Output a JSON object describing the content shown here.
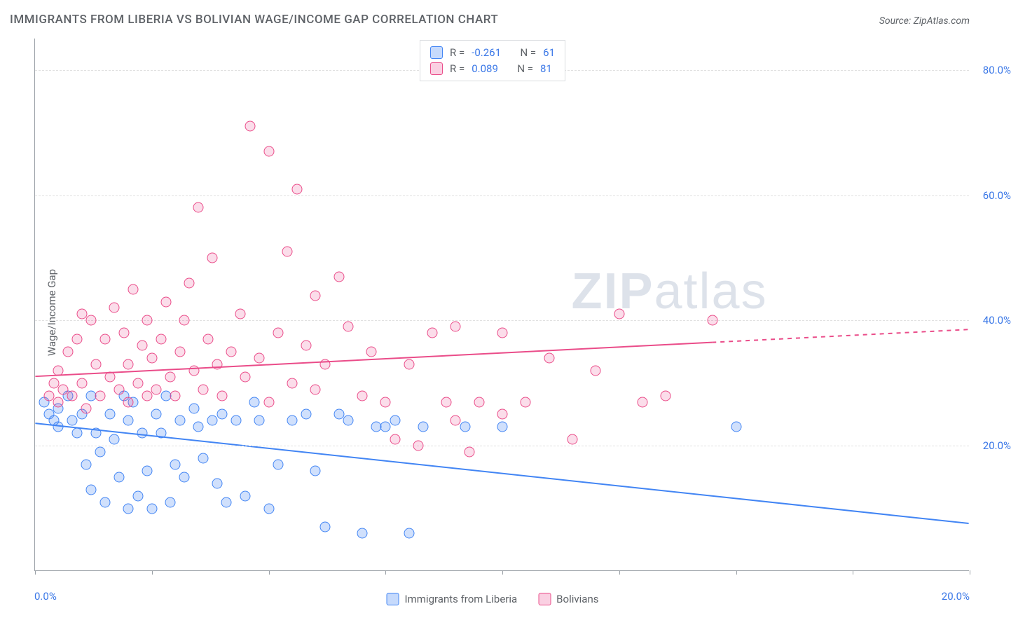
{
  "title": "IMMIGRANTS FROM LIBERIA VS BOLIVIAN WAGE/INCOME GAP CORRELATION CHART",
  "source": "Source: ZipAtlas.com",
  "watermark_zip": "ZIP",
  "watermark_atlas": "atlas",
  "yaxis_title": "Wage/Income Gap",
  "chart": {
    "type": "scatter",
    "background_color": "#ffffff",
    "grid_color": "#e0e0e0",
    "axis_color": "#9aa0a6",
    "xlim": [
      0,
      20
    ],
    "ylim": [
      0,
      85
    ],
    "xticks": [
      0,
      2.5,
      5,
      7.5,
      10,
      12.5,
      15,
      17.5,
      20
    ],
    "xtick_labels": {
      "left": "0.0%",
      "right": "20.0%"
    },
    "yticks": [
      20,
      40,
      60,
      80
    ],
    "ytick_labels": [
      "20.0%",
      "40.0%",
      "60.0%",
      "80.0%"
    ],
    "marker_radius": 7.5,
    "series": [
      {
        "name": "Immigrants from Liberia",
        "color": "#4285f4",
        "fill": "rgba(66,133,244,0.25)",
        "R": "-0.261",
        "N": "61",
        "trend": {
          "x1": 0,
          "y1": 23.5,
          "x2": 20,
          "y2": 7.5,
          "solid_to_x": 20
        },
        "points": [
          [
            0.2,
            27
          ],
          [
            0.3,
            25
          ],
          [
            0.4,
            24
          ],
          [
            0.5,
            26
          ],
          [
            0.5,
            23
          ],
          [
            0.7,
            28
          ],
          [
            0.8,
            24
          ],
          [
            0.9,
            22
          ],
          [
            1.0,
            25
          ],
          [
            1.1,
            17
          ],
          [
            1.2,
            13
          ],
          [
            1.2,
            28
          ],
          [
            1.3,
            22
          ],
          [
            1.4,
            19
          ],
          [
            1.5,
            11
          ],
          [
            1.6,
            25
          ],
          [
            1.7,
            21
          ],
          [
            1.8,
            15
          ],
          [
            1.9,
            28
          ],
          [
            2.0,
            10
          ],
          [
            2.0,
            24
          ],
          [
            2.1,
            27
          ],
          [
            2.2,
            12
          ],
          [
            2.3,
            22
          ],
          [
            2.4,
            16
          ],
          [
            2.5,
            10
          ],
          [
            2.6,
            25
          ],
          [
            2.7,
            22
          ],
          [
            2.8,
            28
          ],
          [
            2.9,
            11
          ],
          [
            3.0,
            17
          ],
          [
            3.1,
            24
          ],
          [
            3.2,
            15
          ],
          [
            3.4,
            26
          ],
          [
            3.5,
            23
          ],
          [
            3.6,
            18
          ],
          [
            3.8,
            24
          ],
          [
            3.9,
            14
          ],
          [
            4.0,
            25
          ],
          [
            4.1,
            11
          ],
          [
            4.3,
            24
          ],
          [
            4.5,
            12
          ],
          [
            4.7,
            27
          ],
          [
            4.8,
            24
          ],
          [
            5.0,
            10
          ],
          [
            5.2,
            17
          ],
          [
            5.5,
            24
          ],
          [
            5.8,
            25
          ],
          [
            6.0,
            16
          ],
          [
            6.2,
            7
          ],
          [
            6.5,
            25
          ],
          [
            6.7,
            24
          ],
          [
            7.0,
            6
          ],
          [
            7.3,
            23
          ],
          [
            7.5,
            23
          ],
          [
            7.7,
            24
          ],
          [
            8.0,
            6
          ],
          [
            8.3,
            23
          ],
          [
            9.2,
            23
          ],
          [
            10.0,
            23
          ],
          [
            15.0,
            23
          ]
        ]
      },
      {
        "name": "Bolivians",
        "color": "#ea4c89",
        "fill": "rgba(234,67,140,0.18)",
        "R": "0.089",
        "N": "81",
        "trend": {
          "x1": 0,
          "y1": 31,
          "x2": 20,
          "y2": 38.5,
          "solid_to_x": 14.5
        },
        "points": [
          [
            0.3,
            28
          ],
          [
            0.4,
            30
          ],
          [
            0.5,
            27
          ],
          [
            0.5,
            32
          ],
          [
            0.6,
            29
          ],
          [
            0.7,
            35
          ],
          [
            0.8,
            28
          ],
          [
            0.9,
            37
          ],
          [
            1.0,
            30
          ],
          [
            1.0,
            41
          ],
          [
            1.1,
            26
          ],
          [
            1.2,
            40
          ],
          [
            1.3,
            33
          ],
          [
            1.4,
            28
          ],
          [
            1.5,
            37
          ],
          [
            1.6,
            31
          ],
          [
            1.7,
            42
          ],
          [
            1.8,
            29
          ],
          [
            1.9,
            38
          ],
          [
            2.0,
            27
          ],
          [
            2.0,
            33
          ],
          [
            2.1,
            45
          ],
          [
            2.2,
            30
          ],
          [
            2.3,
            36
          ],
          [
            2.4,
            28
          ],
          [
            2.4,
            40
          ],
          [
            2.5,
            34
          ],
          [
            2.6,
            29
          ],
          [
            2.7,
            37
          ],
          [
            2.8,
            43
          ],
          [
            2.9,
            31
          ],
          [
            3.0,
            28
          ],
          [
            3.1,
            35
          ],
          [
            3.2,
            40
          ],
          [
            3.3,
            46
          ],
          [
            3.4,
            32
          ],
          [
            3.5,
            58
          ],
          [
            3.6,
            29
          ],
          [
            3.7,
            37
          ],
          [
            3.8,
            50
          ],
          [
            3.9,
            33
          ],
          [
            4.0,
            28
          ],
          [
            4.2,
            35
          ],
          [
            4.4,
            41
          ],
          [
            4.5,
            31
          ],
          [
            4.6,
            71
          ],
          [
            4.8,
            34
          ],
          [
            5.0,
            67
          ],
          [
            5.0,
            27
          ],
          [
            5.2,
            38
          ],
          [
            5.4,
            51
          ],
          [
            5.5,
            30
          ],
          [
            5.6,
            61
          ],
          [
            5.8,
            36
          ],
          [
            6.0,
            44
          ],
          [
            6.0,
            29
          ],
          [
            6.2,
            33
          ],
          [
            6.5,
            47
          ],
          [
            6.7,
            39
          ],
          [
            7.0,
            28
          ],
          [
            7.2,
            35
          ],
          [
            7.5,
            27
          ],
          [
            7.7,
            21
          ],
          [
            8.0,
            33
          ],
          [
            8.2,
            20
          ],
          [
            8.5,
            38
          ],
          [
            8.8,
            27
          ],
          [
            9.0,
            24
          ],
          [
            9.0,
            39
          ],
          [
            9.3,
            19
          ],
          [
            9.5,
            27
          ],
          [
            10.0,
            38
          ],
          [
            10.0,
            25
          ],
          [
            10.5,
            27
          ],
          [
            11.0,
            34
          ],
          [
            11.5,
            21
          ],
          [
            12.0,
            32
          ],
          [
            12.5,
            41
          ],
          [
            13.0,
            27
          ],
          [
            13.5,
            28
          ],
          [
            14.5,
            40
          ]
        ]
      }
    ]
  },
  "stat_legend": {
    "rows": [
      {
        "series": 0,
        "r_label": "R =",
        "n_label": "N ="
      },
      {
        "series": 1,
        "r_label": "R =",
        "n_label": "N ="
      }
    ]
  },
  "bottom_legend": {
    "items": [
      {
        "series": 0
      },
      {
        "series": 1
      }
    ]
  }
}
